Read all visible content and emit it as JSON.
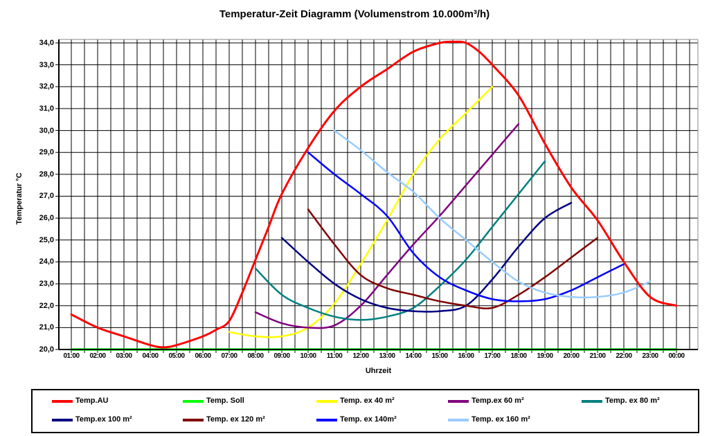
{
  "title": "Temperatur-Zeit Diagramm (Volumenstrom 10.000m³/h)",
  "x_axis": {
    "title": "Uhrzeit",
    "tick_labels": [
      "01:00",
      "02:00",
      "03:00",
      "04:00",
      "05:00",
      "06:00",
      "07:00",
      "08:00",
      "09:00",
      "10:00",
      "11:00",
      "12:00",
      "13:00",
      "14:00",
      "15:00",
      "16:00",
      "17:00",
      "18:00",
      "19:00",
      "20:00",
      "21:00",
      "22:00",
      "23:00",
      "00:00"
    ]
  },
  "y_axis": {
    "title": "Temperatur °C",
    "tick_labels": [
      "20,0",
      "21,0",
      "22,0",
      "23,0",
      "24,0",
      "25,0",
      "26,0",
      "27,0",
      "28,0",
      "29,0",
      "30,0",
      "31,0",
      "32,0",
      "33,0",
      "34,0"
    ]
  },
  "legend": {
    "entries": [
      {
        "label": "Temp.AU",
        "color": "#FF0000"
      },
      {
        "label": "Temp. Soll",
        "color": "#00FF00"
      },
      {
        "label": "Temp. ex 40 m²",
        "color": "#FFFF00"
      },
      {
        "label": "Temp.ex 60 m²",
        "color": "#800080"
      },
      {
        "label": "Temp. ex 80 m²",
        "color": "#008080"
      },
      {
        "label": "Temp.ex 100 m²",
        "color": "#000080"
      },
      {
        "label": "Temp. ex 120 m²",
        "color": "#800000"
      },
      {
        "label": "Temp. ex 140m²",
        "color": "#0000FF"
      },
      {
        "label": "Temp. ex 160 m²",
        "color": "#99CCFF"
      }
    ]
  },
  "chart_data": {
    "type": "line",
    "title": "Temperatur-Zeit Diagramm (Volumenstrom 10.000m³/h)",
    "xlabel": "Uhrzeit",
    "ylabel": "Temperatur °C",
    "x_unit": "hour of day (1 = 01:00 ... 24 = 00:00)",
    "xlim": [
      1,
      24
    ],
    "ylim": [
      20,
      34
    ],
    "grid": {
      "vertical_every_hours": 0.5,
      "horizontal_every_deg": 1,
      "color": "#000000"
    },
    "legend_position": "bottom",
    "series": [
      {
        "name": "Temp.AU",
        "color": "#FF0000",
        "x": [
          1,
          2,
          3,
          4,
          4.5,
          5,
          6,
          6.5,
          7,
          7.5,
          8,
          8.5,
          9,
          10,
          11,
          12,
          13,
          14,
          15,
          15.5,
          16,
          16.5,
          17,
          18,
          19,
          20,
          21,
          22,
          23,
          24
        ],
        "y": [
          21.6,
          21.0,
          20.6,
          20.2,
          20.1,
          20.2,
          20.6,
          20.9,
          21.3,
          22.6,
          24.1,
          25.6,
          27.1,
          29.2,
          30.9,
          32.0,
          32.8,
          33.6,
          34.0,
          34.05,
          34.0,
          33.6,
          33.0,
          31.6,
          29.4,
          27.4,
          25.9,
          24.0,
          22.4,
          22.0
        ]
      },
      {
        "name": "Temp. Soll",
        "color": "#00FF00",
        "x": [
          1,
          24
        ],
        "y": [
          20.0,
          20.0
        ]
      },
      {
        "name": "Temp. ex 40 m²",
        "color": "#FFFF00",
        "x": [
          7,
          8,
          9,
          10,
          11,
          12,
          13,
          14,
          15,
          16,
          17
        ],
        "y": [
          20.8,
          20.6,
          20.6,
          21.0,
          22.1,
          23.9,
          25.9,
          28.0,
          29.6,
          30.8,
          32.0
        ]
      },
      {
        "name": "Temp.ex 60 m²",
        "color": "#800080",
        "x": [
          8,
          9,
          10,
          11,
          12,
          13,
          14,
          15,
          16,
          17,
          18
        ],
        "y": [
          21.7,
          21.2,
          21.0,
          21.1,
          22.0,
          23.4,
          24.8,
          26.1,
          27.5,
          28.9,
          30.3
        ]
      },
      {
        "name": "Temp. ex 80 m²",
        "color": "#008080",
        "x": [
          8,
          9,
          10,
          11,
          12,
          13,
          14,
          15,
          16,
          17,
          18,
          19
        ],
        "y": [
          23.7,
          22.5,
          21.9,
          21.5,
          21.35,
          21.5,
          21.9,
          22.9,
          24.1,
          25.6,
          27.1,
          28.6
        ]
      },
      {
        "name": "Temp.ex 100 m²",
        "color": "#000080",
        "x": [
          9,
          10,
          11,
          12,
          13,
          14,
          15,
          16,
          17,
          18,
          19,
          20
        ],
        "y": [
          25.1,
          24.0,
          23.0,
          22.3,
          21.9,
          21.75,
          21.75,
          22.0,
          23.2,
          24.7,
          26.0,
          26.7
        ]
      },
      {
        "name": "Temp. ex 120 m²",
        "color": "#800000",
        "x": [
          10,
          11,
          12,
          13,
          14,
          15,
          16,
          17,
          18,
          19,
          20,
          21
        ],
        "y": [
          26.4,
          24.8,
          23.4,
          22.8,
          22.5,
          22.2,
          22.0,
          21.9,
          22.5,
          23.3,
          24.2,
          25.1
        ]
      },
      {
        "name": "Temp. ex 140m²",
        "color": "#0000FF",
        "x": [
          10,
          11,
          12,
          13,
          14,
          15,
          16,
          17,
          18,
          19,
          20,
          21,
          22
        ],
        "y": [
          29.0,
          28.0,
          27.1,
          26.1,
          24.4,
          23.3,
          22.7,
          22.3,
          22.2,
          22.3,
          22.7,
          23.3,
          23.9
        ]
      },
      {
        "name": "Temp. ex 160 m²",
        "color": "#99CCFF",
        "x": [
          11,
          12,
          13,
          14,
          15,
          16,
          17,
          18,
          19,
          20,
          21,
          22,
          23
        ],
        "y": [
          30.0,
          29.1,
          28.1,
          27.2,
          26.0,
          25.0,
          24.0,
          23.1,
          22.6,
          22.4,
          22.4,
          22.6,
          23.1
        ]
      }
    ]
  }
}
